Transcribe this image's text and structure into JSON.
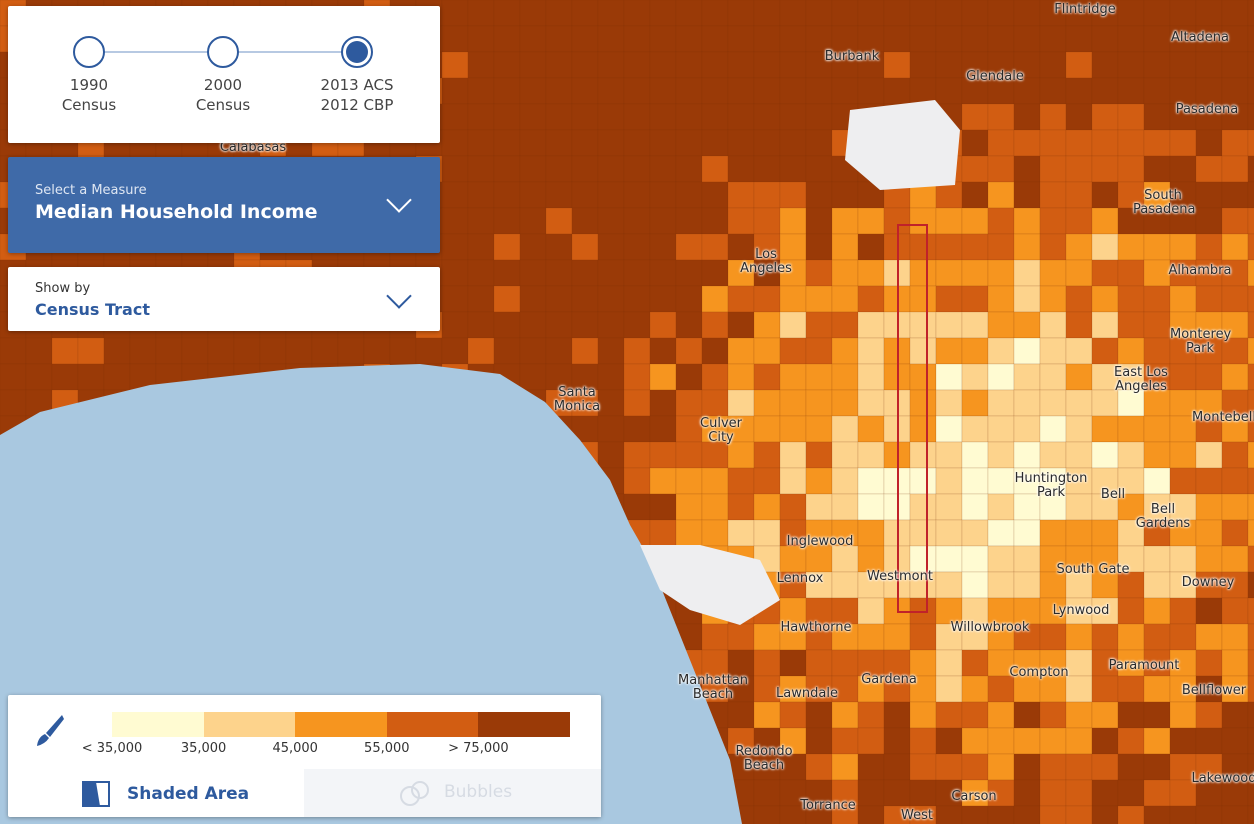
{
  "timeline": {
    "steps": [
      {
        "line1": "1990",
        "line2": "Census"
      },
      {
        "line1": "2000",
        "line2": "Census"
      },
      {
        "line1": "2013 ACS",
        "line2": "2012 CBP"
      }
    ],
    "selected": 2
  },
  "measure": {
    "label": "Select a Measure",
    "value": "Median Household Income"
  },
  "show_by": {
    "label": "Show by",
    "value": "Census Tract"
  },
  "legend": {
    "labels": [
      "< 35,000",
      "35,000",
      "45,000",
      "55,000",
      "> 75,000"
    ]
  },
  "view_toggle": [
    "Shaded Area",
    "Bubbles"
  ],
  "places": [
    "Flintridge",
    "Altadena",
    "Burbank",
    "Glendale",
    "Pasadena",
    "Calabasas",
    "South Pasadena",
    "Los Angeles",
    "Alhambra",
    "Monterey Park",
    "East Los Angeles",
    "Santa Monica",
    "Culver City",
    "Montebello",
    "Huntington Park",
    "Bell",
    "Bell Gardens",
    "Inglewood",
    "South Gate",
    "Downey",
    "Lennox",
    "Westmont",
    "Lynwood",
    "Hawthorne",
    "Willowbrook",
    "Paramount",
    "Compton",
    "Gardena",
    "Manhattan Beach",
    "Lawndale",
    "Bellflower",
    "Redondo Beach",
    "Lakewood",
    "Carson",
    "Torrance",
    "West"
  ]
}
